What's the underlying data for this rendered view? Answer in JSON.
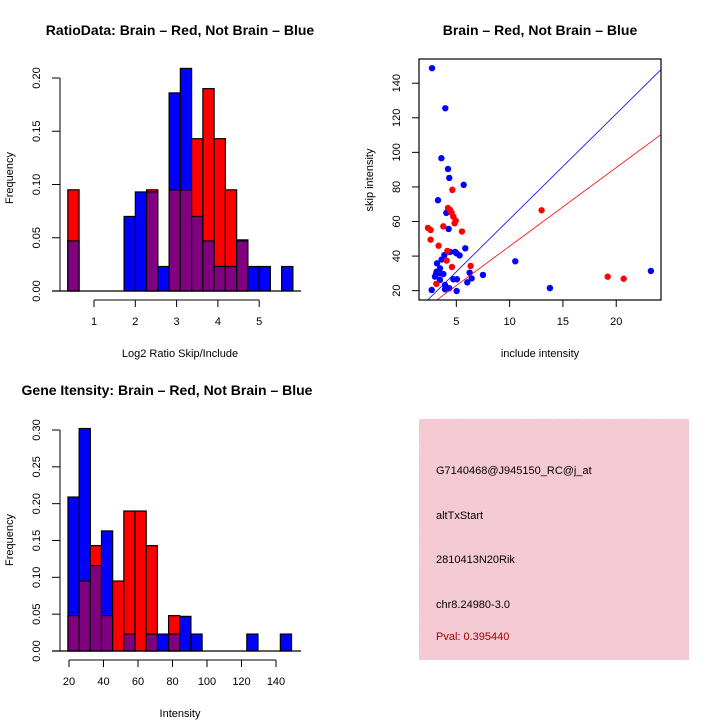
{
  "colors": {
    "brain": "#ff0000",
    "not_brain": "#0000ff",
    "overlap": "#800080",
    "info_bg": "#f3c2cc",
    "pval": "#a00000"
  },
  "chart_data": [
    {
      "type": "bar",
      "id": "ratio",
      "title": "RatioData: Brain – Red, Not Brain – Blue",
      "xlabel": "Log2 Ratio Skip/Include",
      "ylabel": "Frequency",
      "xticks": [
        1,
        2,
        3,
        4,
        5
      ],
      "yticks": [
        "0.00",
        "0.05",
        "0.10",
        "0.15",
        "0.20"
      ],
      "breaks": {
        "start": 0.366,
        "width": 0.2725
      },
      "series": [
        {
          "name": "Brain",
          "color": "red",
          "values": [
            0.095,
            0,
            0,
            0,
            0,
            0,
            0,
            0.095,
            0,
            0.095,
            0.095,
            0.143,
            0.19,
            0.143,
            0.095,
            0.048,
            0,
            0,
            0,
            0
          ]
        },
        {
          "name": "Not Brain",
          "color": "blue",
          "values": [
            0.047,
            0,
            0,
            0,
            0,
            0.07,
            0.093,
            0.093,
            0.023,
            0.186,
            0.209,
            0.07,
            0.047,
            0.023,
            0.023,
            0.047,
            0.023,
            0.023,
            0,
            0.023
          ]
        }
      ]
    },
    {
      "type": "scatter",
      "id": "scatter",
      "title": "Brain – Red, Not Brain – Blue",
      "xlabel": "include intensity",
      "ylabel": "skip intensity",
      "xlim": [
        1.5,
        24.2
      ],
      "ylim": [
        14.6,
        154
      ],
      "xticks": [
        5,
        10,
        15,
        20
      ],
      "yticks": [
        20,
        40,
        60,
        80,
        100,
        120,
        140
      ],
      "lines": [
        {
          "name": "Not Brain fit",
          "color": "blue",
          "slope": 6.09,
          "intercept": 0.5
        },
        {
          "name": "Brain fit",
          "color": "red",
          "slope": 4.55,
          "intercept": 0.2
        }
      ],
      "series": [
        {
          "name": "Not Brain",
          "color": "blue",
          "points": [
            [
              2.72,
              148.7
            ],
            [
              3.97,
              125.5
            ],
            [
              3.6,
              96.6
            ],
            [
              4.22,
              90.4
            ],
            [
              4.34,
              85.2
            ],
            [
              5.69,
              81.2
            ],
            [
              3.28,
              72.3
            ],
            [
              4.06,
              65
            ],
            [
              4.28,
              55.7
            ],
            [
              5.84,
              44.5
            ],
            [
              4.4,
              42.4
            ],
            [
              4.88,
              42.4
            ],
            [
              5.03,
              41.6
            ],
            [
              5.31,
              40.4
            ],
            [
              3.88,
              40.6
            ],
            [
              3.63,
              38
            ],
            [
              3.19,
              35.8
            ],
            [
              3.47,
              32.9
            ],
            [
              3.16,
              31
            ],
            [
              3.47,
              30
            ],
            [
              3.0,
              28.1
            ],
            [
              3.78,
              29.6
            ],
            [
              3.1,
              29.6
            ],
            [
              3.47,
              26.2
            ],
            [
              4.72,
              26.6
            ],
            [
              5.06,
              26.6
            ],
            [
              3.94,
              23.3
            ],
            [
              3.94,
              20.8
            ],
            [
              4.34,
              21.4
            ],
            [
              5.03,
              19.8
            ],
            [
              2.69,
              20.4
            ],
            [
              6.25,
              30.4
            ],
            [
              6.44,
              27.1
            ],
            [
              6.03,
              24.8
            ],
            [
              7.5,
              29.1
            ],
            [
              10.53,
              37
            ],
            [
              13.78,
              21.5
            ],
            [
              23.25,
              31.4
            ]
          ]
        },
        {
          "name": "Brain",
          "color": "red",
          "points": [
            [
              2.34,
              56.3
            ],
            [
              2.59,
              55.1
            ],
            [
              2.59,
              49.5
            ],
            [
              3.34,
              46
            ],
            [
              3.78,
              57.2
            ],
            [
              4.22,
              67.8
            ],
            [
              4.41,
              66.7
            ],
            [
              4.56,
              65.1
            ],
            [
              4.72,
              62.8
            ],
            [
              4.94,
              60.5
            ],
            [
              4.84,
              59
            ],
            [
              4.63,
              78.3
            ],
            [
              5.53,
              54.2
            ],
            [
              4.16,
              43
            ],
            [
              4.09,
              37.4
            ],
            [
              4.59,
              33.7
            ],
            [
              6.34,
              34.3
            ],
            [
              3.13,
              23.9
            ],
            [
              13.0,
              66.5
            ],
            [
              19.2,
              28.1
            ],
            [
              20.7,
              26.9
            ]
          ]
        }
      ]
    },
    {
      "type": "bar",
      "id": "intensity",
      "title": "Gene Itensity: Brain – Red, Not Brain – Blue",
      "xlabel": "Intensity",
      "ylabel": "Frequency",
      "xticks": [
        20,
        40,
        60,
        80,
        100,
        120,
        140
      ],
      "yticks": [
        "0.00",
        "0.05",
        "0.10",
        "0.15",
        "0.20",
        "0.25",
        "0.30"
      ],
      "breaks": {
        "start": 19.4,
        "width": 6.48
      },
      "series": [
        {
          "name": "Brain",
          "color": "red",
          "values": [
            0.048,
            0.095,
            0.143,
            0.048,
            0.095,
            0.19,
            0.19,
            0.143,
            0,
            0.048,
            0,
            0,
            0,
            0,
            0,
            0,
            0,
            0,
            0,
            0
          ]
        },
        {
          "name": "Not Brain",
          "color": "blue",
          "values": [
            0.209,
            0.302,
            0.116,
            0.163,
            0,
            0.023,
            0,
            0.023,
            0.023,
            0.023,
            0.047,
            0.023,
            0,
            0,
            0,
            0,
            0.023,
            0,
            0,
            0.023
          ]
        }
      ]
    }
  ],
  "info": {
    "probe": "G7140468@J945150_RC@j_at",
    "event": "altTxStart",
    "gene": "2810413N20Rik",
    "location": "chr8.24980-3.0",
    "pval": "Pval: 0.395440"
  }
}
